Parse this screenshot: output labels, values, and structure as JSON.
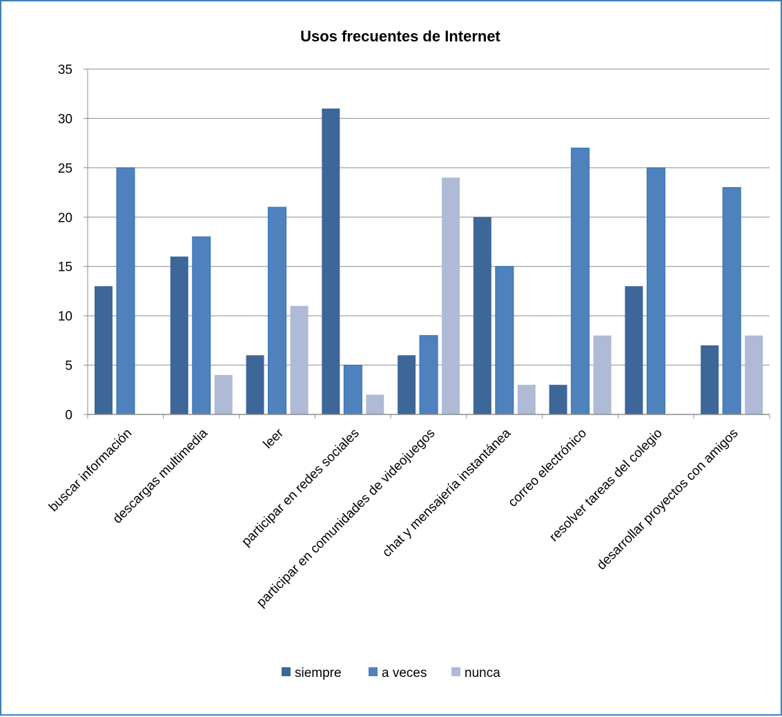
{
  "chart_data": {
    "type": "bar",
    "title": "Usos frecuentes de Internet",
    "xlabel": "",
    "ylabel": "",
    "ylim": [
      0,
      35
    ],
    "yticks": [
      0,
      5,
      10,
      15,
      20,
      25,
      30,
      35
    ],
    "grid": true,
    "legend_position": "bottom",
    "categories": [
      "buscar información",
      "descargas multimedia",
      "leer",
      "participar en redes sociales",
      "participar en comunidades de videojuegos",
      "chat y mensajería instantánea",
      "correo electrónico",
      "resolver tareas del colegio",
      "desarrollar proyectos con amigos"
    ],
    "series": [
      {
        "name": "siempre",
        "color": "#3d6699",
        "values": [
          13,
          16,
          6,
          31,
          6,
          20,
          3,
          13,
          7
        ]
      },
      {
        "name": "a veces",
        "color": "#4f81bd",
        "values": [
          25,
          18,
          21,
          5,
          8,
          15,
          27,
          25,
          23
        ]
      },
      {
        "name": "nunca",
        "color": "#aebad6",
        "values": [
          0,
          4,
          11,
          2,
          24,
          3,
          8,
          0,
          8
        ]
      }
    ]
  }
}
